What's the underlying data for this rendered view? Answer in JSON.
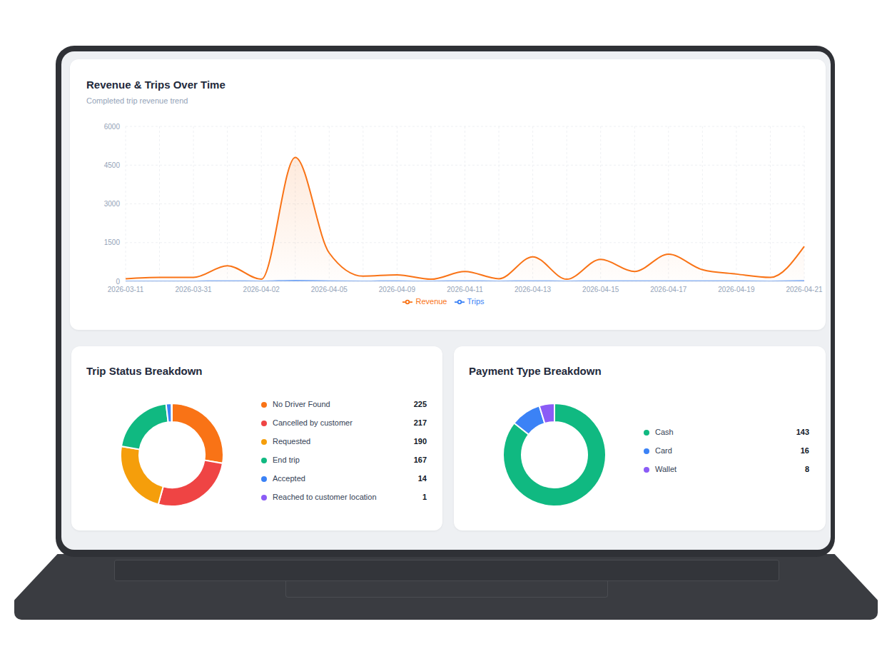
{
  "chart_data": [
    {
      "type": "line",
      "title": "Revenue & Trips Over Time",
      "subtitle": "Completed trip revenue trend",
      "categories": [
        "2026-03-11",
        null,
        "2026-03-31",
        null,
        "2026-04-02",
        null,
        "2026-04-05",
        null,
        "2026-04-09",
        null,
        "2026-04-11",
        null,
        "2026-04-13",
        null,
        "2026-04-15",
        null,
        "2026-04-17",
        null,
        "2026-04-19",
        null,
        "2026-04-21"
      ],
      "series": [
        {
          "name": "Revenue",
          "color": "#f97316",
          "type": "area",
          "values": [
            100,
            150,
            150,
            600,
            80,
            4800,
            1100,
            200,
            250,
            80,
            380,
            100,
            950,
            80,
            850,
            380,
            1050,
            450,
            280,
            150,
            1350
          ]
        },
        {
          "name": "Trips",
          "color": "#3b82f6",
          "type": "line",
          "values": [
            2,
            3,
            3,
            5,
            2,
            20,
            8,
            3,
            4,
            2,
            5,
            2,
            10,
            2,
            9,
            5,
            10,
            6,
            4,
            3,
            15
          ]
        }
      ],
      "ylim": [
        0,
        6000
      ],
      "yticks": [
        0,
        1500,
        3000,
        4500,
        6000
      ],
      "grid": true,
      "legend": "bottom"
    },
    {
      "type": "pie",
      "title": "Trip Status Breakdown",
      "categories": [
        "No Driver Found",
        "Cancelled by customer",
        "Requested",
        "End trip",
        "Accepted",
        "Reached to customer location"
      ],
      "values": [
        225,
        217,
        190,
        167,
        14,
        1
      ],
      "colors": [
        "#f97316",
        "#ef4444",
        "#f59e0b",
        "#10b981",
        "#3b82f6",
        "#8b5cf6"
      ],
      "legend": "right"
    },
    {
      "type": "pie",
      "title": "Payment Type Breakdown",
      "categories": [
        "Cash",
        "Card",
        "Wallet"
      ],
      "values": [
        143,
        16,
        8
      ],
      "colors": [
        "#10b981",
        "#3b82f6",
        "#8b5cf6"
      ],
      "legend": "right"
    }
  ]
}
